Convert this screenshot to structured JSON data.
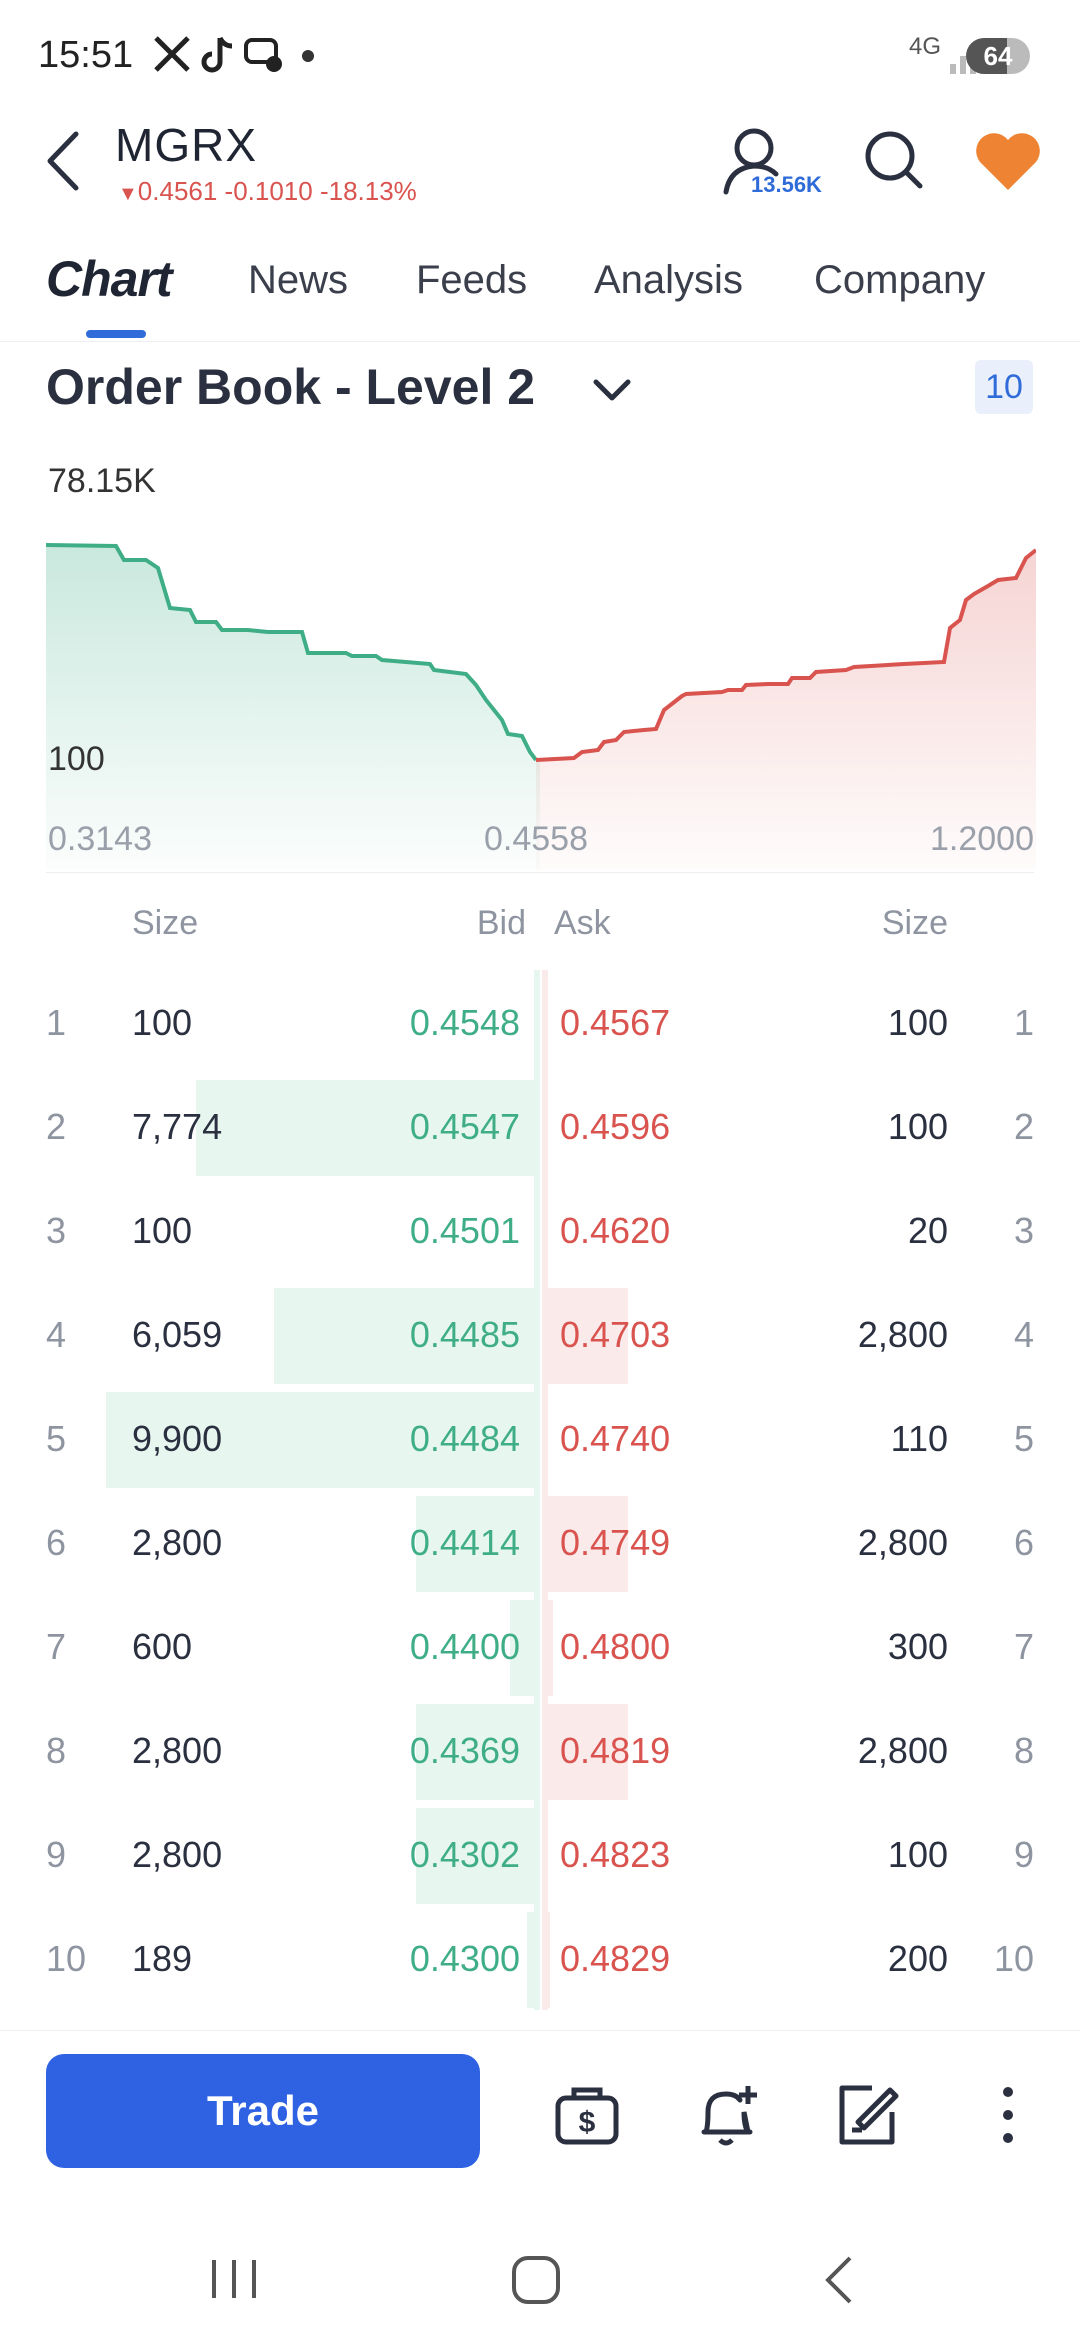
{
  "status_bar": {
    "time": "15:51",
    "network": "4G",
    "battery": "64"
  },
  "header": {
    "ticker": "MGRX",
    "quote": "0.4561 -0.1010 -18.13%",
    "followers": "13.56K",
    "accent_color": "#2f62e3",
    "down_color": "#d9534f",
    "up_color": "#3fae87"
  },
  "tabs": [
    {
      "label": "Chart",
      "active": true
    },
    {
      "label": "News"
    },
    {
      "label": "Feeds"
    },
    {
      "label": "Analysis"
    },
    {
      "label": "Company"
    }
  ],
  "order_book": {
    "title": "Order Book - Level 2",
    "depth": "10",
    "chart": {
      "y_max_label": "78.15K",
      "y_min_label": "100",
      "x_left": "0.3143",
      "x_mid": "0.4558",
      "x_right": "1.2000"
    },
    "columns": {
      "size": "Size",
      "bid": "Bid",
      "ask": "Ask",
      "size_right": "Size"
    },
    "rows": [
      {
        "level": "1",
        "bid_size": "100",
        "bid": "0.4548",
        "ask": "0.4567",
        "ask_size": "100",
        "bid_frac": 0.0,
        "ask_frac": 0.0
      },
      {
        "level": "2",
        "bid_size": "7,774",
        "bid": "0.4547",
        "ask": "0.4596",
        "ask_size": "100",
        "bid_frac": 0.79,
        "ask_frac": 0.0
      },
      {
        "level": "3",
        "bid_size": "100",
        "bid": "0.4501",
        "ask": "0.4620",
        "ask_size": "20",
        "bid_frac": 0.0,
        "ask_frac": 0.0
      },
      {
        "level": "4",
        "bid_size": "6,059",
        "bid": "0.4485",
        "ask": "0.4703",
        "ask_size": "2,800",
        "bid_frac": 0.61,
        "ask_frac": 0.28
      },
      {
        "level": "5",
        "bid_size": "9,900",
        "bid": "0.4484",
        "ask": "0.4740",
        "ask_size": "110",
        "bid_frac": 1.0,
        "ask_frac": 0.0
      },
      {
        "level": "6",
        "bid_size": "2,800",
        "bid": "0.4414",
        "ask": "0.4749",
        "ask_size": "2,800",
        "bid_frac": 0.28,
        "ask_frac": 0.28
      },
      {
        "level": "7",
        "bid_size": "600",
        "bid": "0.4400",
        "ask": "0.4800",
        "ask_size": "300",
        "bid_frac": 0.06,
        "ask_frac": 0.03
      },
      {
        "level": "8",
        "bid_size": "2,800",
        "bid": "0.4369",
        "ask": "0.4819",
        "ask_size": "2,800",
        "bid_frac": 0.28,
        "ask_frac": 0.28
      },
      {
        "level": "9",
        "bid_size": "2,800",
        "bid": "0.4302",
        "ask": "0.4823",
        "ask_size": "100",
        "bid_frac": 0.28,
        "ask_frac": 0.0
      },
      {
        "level": "10",
        "bid_size": "189",
        "bid": "0.4300",
        "ask": "0.4829",
        "ask_size": "200",
        "bid_frac": 0.02,
        "ask_frac": 0.02
      }
    ]
  },
  "bottom_bar": {
    "trade_label": "Trade"
  }
}
